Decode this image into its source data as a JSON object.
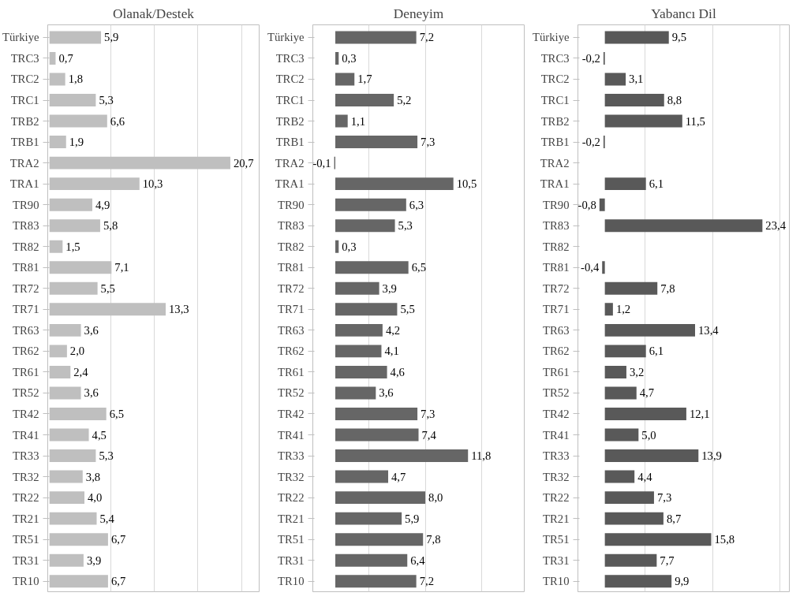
{
  "chart_data": [
    {
      "type": "bar",
      "orientation": "horizontal",
      "title": "Olanak/Destek",
      "categories": [
        "Türkiye",
        "TRC3",
        "TRC2",
        "TRC1",
        "TRB2",
        "TRB1",
        "TRA2",
        "TRA1",
        "TR90",
        "TR83",
        "TR82",
        "TR81",
        "TR72",
        "TR71",
        "TR63",
        "TR62",
        "TR61",
        "TR52",
        "TR42",
        "TR41",
        "TR33",
        "TR32",
        "TR22",
        "TR21",
        "TR51",
        "TR31",
        "TR10"
      ],
      "values": [
        5.9,
        0.7,
        1.8,
        5.3,
        6.6,
        1.9,
        20.7,
        10.3,
        4.9,
        5.8,
        1.5,
        7.1,
        5.5,
        13.3,
        3.6,
        2.0,
        2.4,
        3.6,
        6.5,
        4.5,
        5.3,
        3.8,
        4.0,
        5.4,
        6.7,
        3.9,
        6.7
      ],
      "value_labels": [
        "5,9",
        "0,7",
        "1,8",
        "5,3",
        "6,6",
        "1,9",
        "20,7",
        "10,3",
        "4,9",
        "5,8",
        "1,5",
        "7,1",
        "5,5",
        "13,3",
        "3,6",
        "2,0",
        "2,4",
        "3,6",
        "6,5",
        "4,5",
        "5,3",
        "3,8",
        "4,0",
        "5,4",
        "6,7",
        "3,9",
        "6,7"
      ],
      "color": "#bfbfbf",
      "xlim": [
        -0.2,
        24
      ],
      "xticks": [
        {
          "value": 7,
          "label": null
        },
        {
          "value": 12,
          "label": null
        },
        {
          "value": 17,
          "label": null
        },
        {
          "value": 22,
          "label": null
        }
      ],
      "grid": "x",
      "tick_labels": "y"
    },
    {
      "type": "bar",
      "orientation": "horizontal",
      "title": "Deneyim",
      "categories": [
        "Türkiye",
        "TRC3",
        "TRC2",
        "TRC1",
        "TRB2",
        "TRB1",
        "TRA2",
        "TRA1",
        "TR90",
        "TR83",
        "TR82",
        "TR81",
        "TR72",
        "TR71",
        "TR63",
        "TR62",
        "TR61",
        "TR52",
        "TR42",
        "TR41",
        "TR33",
        "TR32",
        "TR22",
        "TR21",
        "TR51",
        "TR31",
        "TR10"
      ],
      "values": [
        7.2,
        0.3,
        1.7,
        5.2,
        1.1,
        7.3,
        -0.1,
        10.5,
        6.3,
        5.3,
        0.3,
        6.5,
        3.9,
        5.5,
        4.2,
        4.1,
        4.6,
        3.6,
        7.3,
        7.4,
        11.8,
        4.7,
        8.0,
        5.9,
        7.8,
        6.4,
        7.2
      ],
      "value_labels": [
        "7,2",
        "0,3",
        "1,7",
        "5,2",
        "1,1",
        "7,3",
        "-0,1",
        "10,5",
        "6,3",
        "5,3",
        "0,3",
        "6,5",
        "3,9",
        "5,5",
        "4,2",
        "4,1",
        "4,6",
        "3,6",
        "7,3",
        "7,4",
        "11,8",
        "4,7",
        "8,0",
        "5,9",
        "7,8",
        "6,4",
        "7,2"
      ],
      "color": "#666666",
      "xlim": [
        -2,
        16.8
      ],
      "xticks": [
        {
          "value": 3,
          "label": null
        },
        {
          "value": 8,
          "label": null
        },
        {
          "value": 13,
          "label": null
        }
      ],
      "grid": "x",
      "tick_labels": "y"
    },
    {
      "type": "bar",
      "orientation": "horizontal",
      "title": "Yabancı Dil",
      "categories": [
        "Türkiye",
        "TRC3",
        "TRC2",
        "TRC1",
        "TRB2",
        "TRB1",
        "TRA2",
        "TRA1",
        "TR90",
        "TR83",
        "TR82",
        "TR81",
        "TR72",
        "TR71",
        "TR63",
        "TR62",
        "TR61",
        "TR52",
        "TR42",
        "TR41",
        "TR33",
        "TR32",
        "TR22",
        "TR21",
        "TR51",
        "TR31",
        "TR10"
      ],
      "values": [
        9.5,
        -0.2,
        3.1,
        8.8,
        11.5,
        -0.2,
        null,
        6.1,
        -0.8,
        23.4,
        null,
        -0.4,
        7.8,
        1.2,
        13.4,
        6.1,
        3.2,
        4.7,
        12.1,
        5.0,
        13.9,
        4.4,
        7.3,
        8.7,
        15.8,
        7.7,
        9.9
      ],
      "value_labels": [
        "9,5",
        "-0,2",
        "3,1",
        "8,8",
        "11,5",
        "-0,2",
        null,
        "6,1",
        "-0,8",
        "23,4",
        null,
        "-0,4",
        "7,8",
        "1,2",
        "13,4",
        "6,1",
        "3,2",
        "4,7",
        "12,1",
        "5,0",
        "13,9",
        "4,4",
        "7,3",
        "8,7",
        "15,8",
        "7,7",
        "9,9"
      ],
      "color": "#595959",
      "xlim": [
        -4,
        27.4
      ],
      "xticks": [
        {
          "value": 6,
          "label": null
        },
        {
          "value": 16,
          "label": null
        },
        {
          "value": 26,
          "label": null
        }
      ],
      "grid": "x",
      "tick_labels": "y"
    }
  ]
}
